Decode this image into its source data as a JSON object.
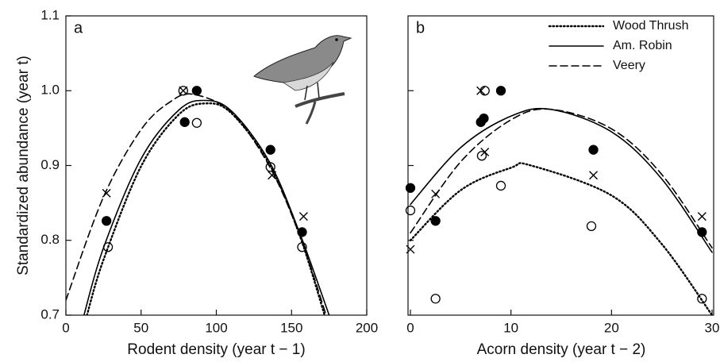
{
  "chart_data": [
    {
      "type": "scatter",
      "label": "a",
      "x_label": "Rodent density (year t − 1)",
      "y_label": "Standardized abundance (year t)",
      "xlim": [
        0,
        200
      ],
      "xticks": [
        0,
        50,
        100,
        150,
        200
      ],
      "ylim": [
        0.7,
        1.1
      ],
      "yticks": [
        0.7,
        0.8,
        0.9,
        {
          "value": 1,
          "label": "1.0"
        },
        1.1
      ],
      "series": [
        {
          "color": "#000000",
          "marker": "open-circle",
          "line_style": "dotted",
          "x": [
            28,
            78,
            87,
            136,
            157
          ],
          "values": [
            0.791,
            1.0,
            0.957,
            0.898,
            0.791
          ],
          "curve_x": [
            14,
            25,
            50,
            75,
            93,
            110,
            135,
            155,
            172
          ],
          "curve_values": [
            0.7,
            0.774,
            0.899,
            0.968,
            0.983,
            0.97,
            0.903,
            0.809,
            0.7
          ]
        },
        {
          "color": "#000000",
          "marker": "filled-circle",
          "line_style": "solid",
          "x": [
            27,
            79,
            87,
            136,
            157
          ],
          "values": [
            0.826,
            0.958,
            1.0,
            0.921,
            0.811
          ],
          "curve_x": [
            12,
            25,
            50,
            75,
            92,
            110,
            135,
            155,
            175
          ],
          "curve_values": [
            0.7,
            0.79,
            0.909,
            0.974,
            0.987,
            0.973,
            0.906,
            0.812,
            0.7
          ]
        },
        {
          "color": "#000000",
          "marker": "cross",
          "line_style": "dashed",
          "x": [
            27,
            78,
            137,
            158
          ],
          "values": [
            0.863,
            1.0,
            0.887,
            0.832
          ],
          "curve_x": [
            0,
            25,
            50,
            70,
            85,
            110,
            135,
            155,
            173
          ],
          "curve_values": [
            0.72,
            0.858,
            0.948,
            0.986,
            0.995,
            0.971,
            0.9,
            0.809,
            0.7
          ]
        }
      ]
    },
    {
      "type": "scatter",
      "label": "b",
      "x_label": "Acorn density (year t − 2)",
      "xlim": [
        0,
        30
      ],
      "xticks": [
        0,
        10,
        20,
        30
      ],
      "ylim": [
        0.7,
        1.1
      ],
      "yticks": [
        0.8,
        0.9,
        1
      ],
      "legend": "upper right",
      "series": [
        {
          "name": "Wood Thrush",
          "color": "#000000",
          "marker": "open-circle",
          "line_style": "dotted",
          "x": [
            0,
            2.5,
            7.1,
            7.4,
            9,
            18,
            29
          ],
          "values": [
            0.84,
            0.722,
            0.913,
            1.0,
            0.873,
            0.819,
            0.722
          ],
          "curve_x": [
            0,
            5,
            10,
            12,
            20,
            25,
            30
          ],
          "curve_values": [
            0.8,
            0.867,
            0.897,
            0.9,
            0.86,
            0.795,
            0.7
          ]
        },
        {
          "name": "Am. Robin",
          "color": "#000000",
          "marker": "filled-circle",
          "line_style": "solid",
          "x": [
            0,
            2.5,
            7,
            7.3,
            9,
            18.2,
            29
          ],
          "values": [
            0.87,
            0.826,
            0.958,
            0.963,
            1.0,
            0.921,
            0.811
          ],
          "curve_x": [
            0,
            5,
            10,
            14,
            20,
            25,
            30
          ],
          "curve_values": [
            0.848,
            0.924,
            0.966,
            0.975,
            0.945,
            0.882,
            0.784
          ]
        },
        {
          "name": "Veery",
          "color": "#000000",
          "marker": "cross",
          "line_style": "dashed",
          "x": [
            0,
            2.5,
            7,
            7.4,
            18.2,
            29
          ],
          "values": [
            0.788,
            0.862,
            1.0,
            0.918,
            0.887,
            0.832
          ],
          "curve_x": [
            0,
            5,
            10,
            14,
            20,
            25,
            30
          ],
          "curve_values": [
            0.81,
            0.905,
            0.961,
            0.975,
            0.949,
            0.888,
            0.79
          ]
        }
      ]
    }
  ]
}
